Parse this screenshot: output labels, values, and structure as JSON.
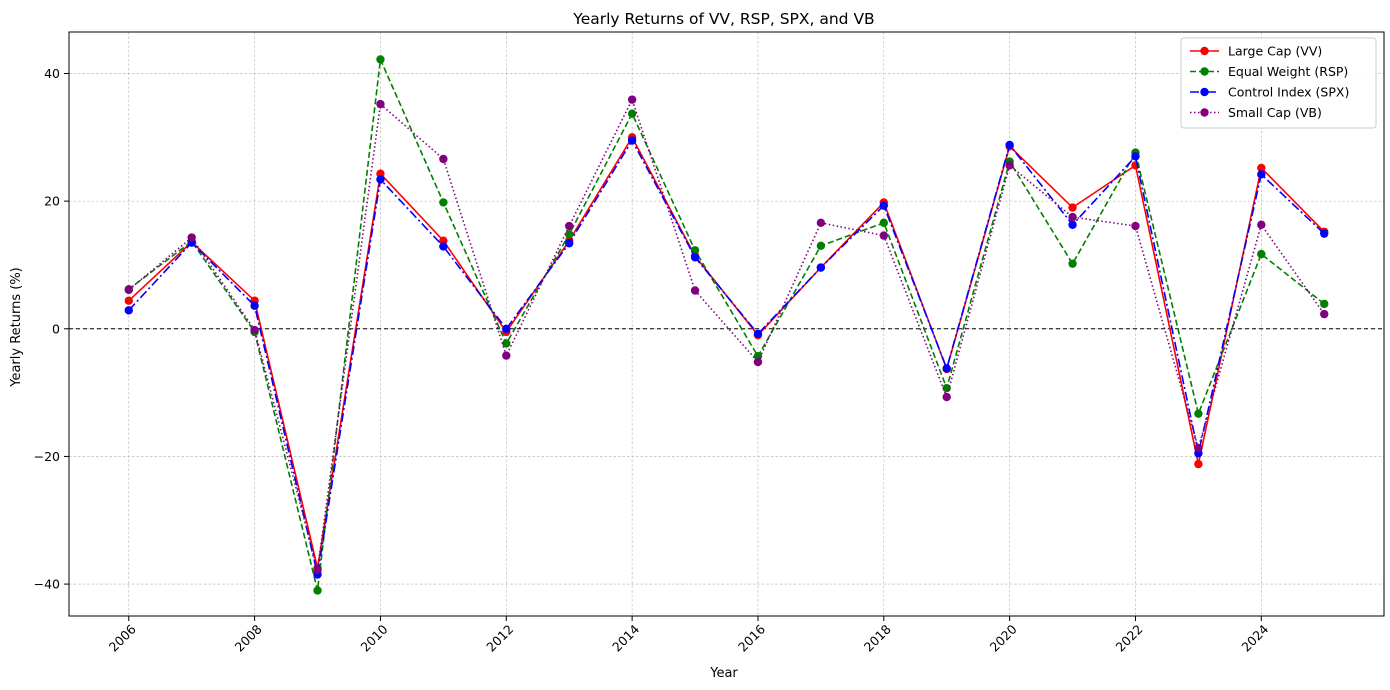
{
  "chart_data": {
    "type": "line",
    "title": "Yearly Returns of VV, RSP, SPX, and VB",
    "xlabel": "Year",
    "ylabel": "Yearly Returns (%)",
    "x": [
      2006,
      2007,
      2008,
      2009,
      2010,
      2011,
      2012,
      2013,
      2014,
      2015,
      2016,
      2017,
      2018,
      2019,
      2020,
      2021,
      2022,
      2023,
      2024,
      2025
    ],
    "xticks": [
      "2006",
      "2008",
      "2010",
      "2012",
      "2014",
      "2016",
      "2018",
      "2020",
      "2022",
      "2024"
    ],
    "yticks": [
      "−40",
      "−20",
      "0",
      "20",
      "40"
    ],
    "xlim": [
      2005.05,
      2025.95
    ],
    "ylim": [
      -45,
      46.5
    ],
    "grid": true,
    "zero_line": true,
    "legend_position": "top-right",
    "series": [
      {
        "name": "Large Cap (VV)",
        "color": "#ff0000",
        "style": "solid",
        "values": [
          4.4,
          13.6,
          4.4,
          -37.5,
          24.3,
          13.8,
          -0.5,
          13.8,
          30.0,
          11.4,
          -1.0,
          9.6,
          19.8,
          -6.3,
          28.6,
          19.0,
          25.6,
          -21.2,
          25.2,
          15.2
        ]
      },
      {
        "name": "Equal Weight (RSP)",
        "color": "#008000",
        "style": "dashed",
        "values": [
          6.2,
          13.7,
          -0.5,
          -41.0,
          42.2,
          19.8,
          -2.3,
          14.8,
          33.7,
          12.3,
          -4.3,
          13.0,
          16.6,
          -9.3,
          26.2,
          10.2,
          27.6,
          -13.3,
          11.7,
          3.9
        ]
      },
      {
        "name": "Control Index (SPX)",
        "color": "#0000ff",
        "style": "dashdot",
        "values": [
          2.9,
          13.5,
          3.6,
          -38.5,
          23.4,
          12.9,
          0.0,
          13.4,
          29.5,
          11.2,
          -0.8,
          9.6,
          19.3,
          -6.2,
          28.8,
          16.3,
          27.0,
          -19.5,
          24.2,
          14.9
        ]
      },
      {
        "name": "Small Cap (VB)",
        "color": "#800080",
        "style": "dotted",
        "values": [
          6.1,
          14.3,
          -0.2,
          -37.8,
          35.2,
          26.6,
          -4.2,
          16.1,
          35.9,
          6.0,
          -5.2,
          16.6,
          14.6,
          -10.7,
          25.6,
          17.5,
          16.1,
          -18.7,
          16.3,
          2.3
        ]
      }
    ]
  }
}
